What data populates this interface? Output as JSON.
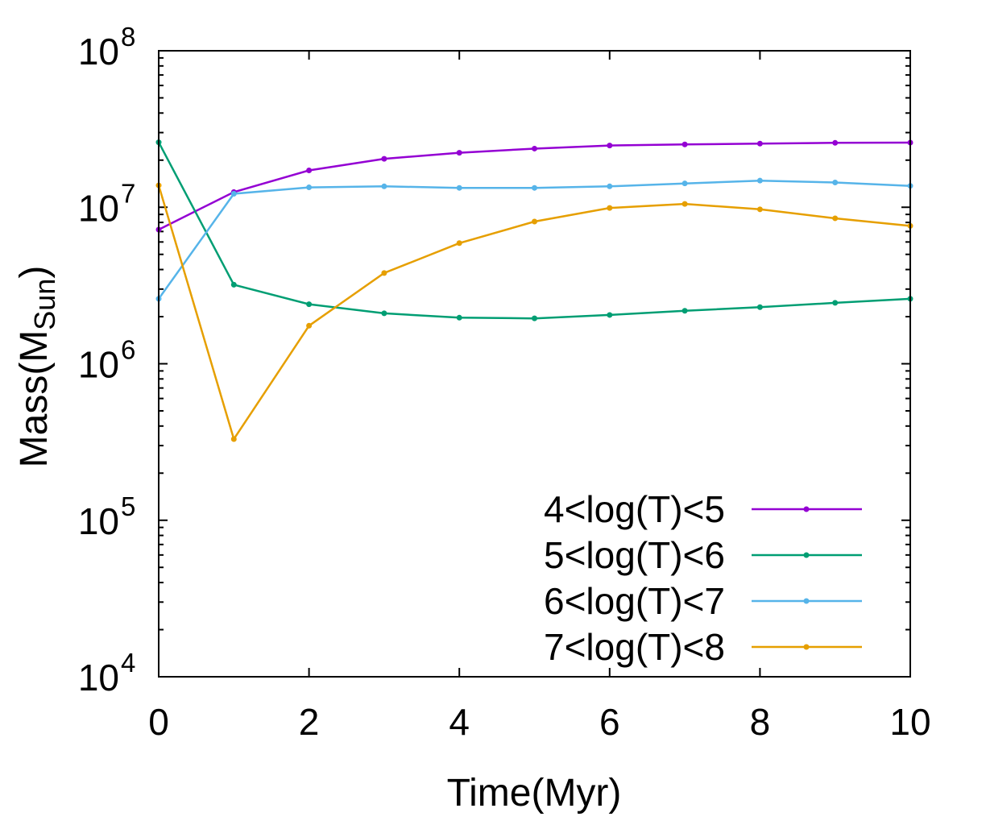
{
  "chart_data": {
    "type": "line",
    "xlabel": "Time(Myr)",
    "ylabel": {
      "main": "Mass(M",
      "sub": "Sun",
      "close": ")"
    },
    "xlim": [
      0,
      10
    ],
    "ylim": [
      10000,
      100000000
    ],
    "yscale": "log",
    "grid": false,
    "legend_position": "bottom-right",
    "x_ticks": [
      {
        "value": 0,
        "label": "0"
      },
      {
        "value": 2,
        "label": "2"
      },
      {
        "value": 4,
        "label": "4"
      },
      {
        "value": 6,
        "label": "6"
      },
      {
        "value": 8,
        "label": "8"
      },
      {
        "value": 10,
        "label": "10"
      }
    ],
    "y_ticks": [
      {
        "value": 10000,
        "base": "10",
        "exp": "4"
      },
      {
        "value": 100000,
        "base": "10",
        "exp": "5"
      },
      {
        "value": 1000000,
        "base": "10",
        "exp": "6"
      },
      {
        "value": 10000000,
        "base": "10",
        "exp": "7"
      },
      {
        "value": 100000000,
        "base": "10",
        "exp": "8"
      }
    ],
    "x": [
      0,
      1,
      2,
      3,
      4,
      5,
      6,
      7,
      8,
      9,
      10
    ],
    "series": [
      {
        "name": "4<log(T)<5",
        "color": "#9400d3",
        "values": [
          7200000,
          12500000,
          17200000,
          20400000,
          22300000,
          23700000,
          24800000,
          25200000,
          25500000,
          25800000,
          25900000
        ]
      },
      {
        "name": "5<log(T)<6",
        "color": "#009e73",
        "values": [
          26000000,
          3200000,
          2400000,
          2100000,
          1970000,
          1950000,
          2050000,
          2180000,
          2300000,
          2450000,
          2600000
        ]
      },
      {
        "name": "6<log(T)<7",
        "color": "#56b4e9",
        "values": [
          2600000,
          12200000,
          13400000,
          13600000,
          13300000,
          13300000,
          13600000,
          14200000,
          14800000,
          14400000,
          13700000
        ]
      },
      {
        "name": "7<log(T)<8",
        "color": "#e69f00",
        "values": [
          13800000,
          330000,
          1750000,
          3800000,
          5900000,
          8100000,
          9900000,
          10500000,
          9700000,
          8500000,
          7600000
        ]
      }
    ]
  }
}
